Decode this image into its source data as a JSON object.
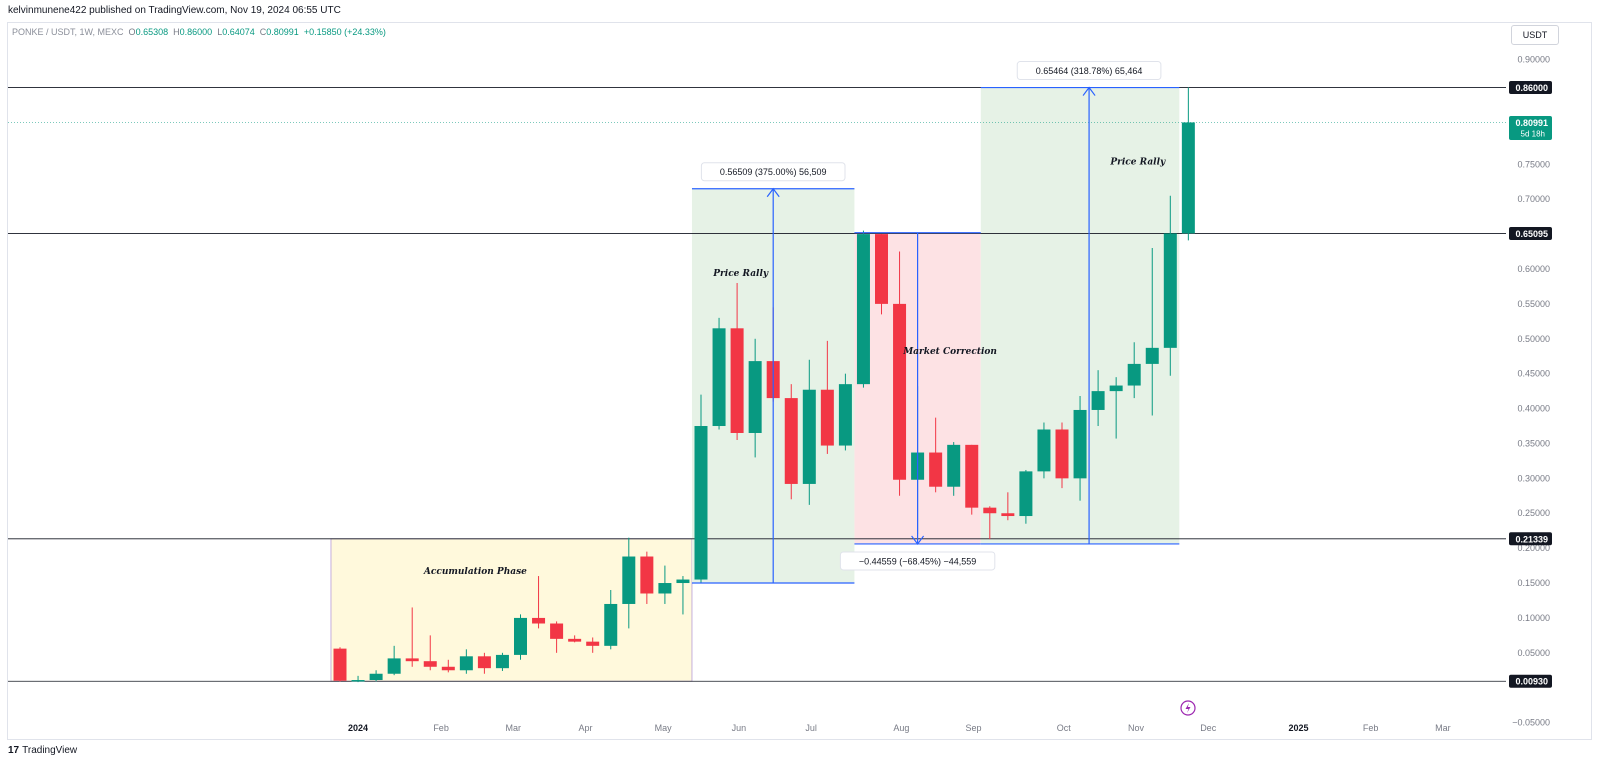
{
  "header": {
    "published": "kelvinmunene422 published on TradingView.com, Nov 19, 2024 06:55 UTC"
  },
  "legend": {
    "symbol": "PONKE / USDT, 1W, MEXC",
    "o_label": "O",
    "o": "0.65308",
    "h_label": "H",
    "h": "0.86000",
    "l_label": "L",
    "l": "0.64074",
    "c_label": "C",
    "c": "0.80991",
    "change": "+0.15850 (+24.33%)"
  },
  "currency_button": "USDT",
  "footer": {
    "logo": "17",
    "brand": "TradingView"
  },
  "chart_data": {
    "type": "candlestick",
    "interval": "1W",
    "ylim": [
      -0.0735,
      0.9525
    ],
    "y_ticks": [
      {
        "value": 0.9,
        "label": "0.90000"
      },
      {
        "value": 0.75,
        "label": "0.75000"
      },
      {
        "value": 0.7,
        "label": "0.70000"
      },
      {
        "value": 0.6,
        "label": "0.60000"
      },
      {
        "value": 0.55,
        "label": "0.55000"
      },
      {
        "value": 0.5,
        "label": "0.50000"
      },
      {
        "value": 0.45,
        "label": "0.45000"
      },
      {
        "value": 0.4,
        "label": "0.40000"
      },
      {
        "value": 0.35,
        "label": "0.35000"
      },
      {
        "value": 0.3,
        "label": "0.30000"
      },
      {
        "value": 0.25,
        "label": "0.25000"
      },
      {
        "value": 0.2,
        "label": "0.20000"
      },
      {
        "value": 0.15,
        "label": "0.15000"
      },
      {
        "value": 0.1,
        "label": "0.10000"
      },
      {
        "value": 0.05,
        "label": "0.05000"
      },
      {
        "value": -0.05,
        "label": "−0.05000"
      }
    ],
    "x_ticks": [
      {
        "label": "2024",
        "i": 1,
        "bold": true
      },
      {
        "label": "Feb",
        "i": 5.6
      },
      {
        "label": "Mar",
        "i": 9.6
      },
      {
        "label": "Apr",
        "i": 13.6
      },
      {
        "label": "May",
        "i": 17.9
      },
      {
        "label": "Jun",
        "i": 22.1
      },
      {
        "label": "Jul",
        "i": 26.1
      },
      {
        "label": "Aug",
        "i": 31.1
      },
      {
        "label": "Sep",
        "i": 35.1
      },
      {
        "label": "Oct",
        "i": 40.1
      },
      {
        "label": "Nov",
        "i": 44.1
      },
      {
        "label": "Dec",
        "i": 48.1
      },
      {
        "label": "2025",
        "i": 53.1,
        "bold": true
      },
      {
        "label": "Feb",
        "i": 57.1
      },
      {
        "label": "Mar",
        "i": 61.1
      }
    ],
    "candles": [
      [
        0.056,
        0.058,
        0.009,
        0.01
      ],
      [
        0.009,
        0.017,
        0.008,
        0.011
      ],
      [
        0.011,
        0.025,
        0.009,
        0.02
      ],
      [
        0.02,
        0.06,
        0.018,
        0.042
      ],
      [
        0.042,
        0.115,
        0.03,
        0.038
      ],
      [
        0.038,
        0.075,
        0.025,
        0.03
      ],
      [
        0.03,
        0.04,
        0.022,
        0.025
      ],
      [
        0.025,
        0.055,
        0.02,
        0.045
      ],
      [
        0.045,
        0.05,
        0.02,
        0.028
      ],
      [
        0.028,
        0.05,
        0.024,
        0.047
      ],
      [
        0.047,
        0.105,
        0.04,
        0.1
      ],
      [
        0.1,
        0.16,
        0.085,
        0.092
      ],
      [
        0.092,
        0.095,
        0.05,
        0.07
      ],
      [
        0.07,
        0.075,
        0.065,
        0.066
      ],
      [
        0.066,
        0.072,
        0.05,
        0.06
      ],
      [
        0.06,
        0.14,
        0.055,
        0.12
      ],
      [
        0.12,
        0.215,
        0.085,
        0.188
      ],
      [
        0.188,
        0.195,
        0.12,
        0.135
      ],
      [
        0.135,
        0.175,
        0.12,
        0.15
      ],
      [
        0.15,
        0.16,
        0.105,
        0.155
      ],
      [
        0.155,
        0.42,
        0.15,
        0.375
      ],
      [
        0.375,
        0.53,
        0.37,
        0.515
      ],
      [
        0.515,
        0.58,
        0.355,
        0.365
      ],
      [
        0.365,
        0.5,
        0.33,
        0.468
      ],
      [
        0.468,
        0.545,
        0.41,
        0.415
      ],
      [
        0.415,
        0.435,
        0.27,
        0.292
      ],
      [
        0.292,
        0.47,
        0.262,
        0.427
      ],
      [
        0.427,
        0.497,
        0.335,
        0.347
      ],
      [
        0.347,
        0.45,
        0.34,
        0.435
      ],
      [
        0.435,
        0.655,
        0.43,
        0.65
      ],
      [
        0.65,
        0.65,
        0.535,
        0.55
      ],
      [
        0.55,
        0.625,
        0.275,
        0.298
      ],
      [
        0.298,
        0.432,
        0.22,
        0.337
      ],
      [
        0.337,
        0.387,
        0.28,
        0.288
      ],
      [
        0.288,
        0.352,
        0.275,
        0.348
      ],
      [
        0.348,
        0.348,
        0.248,
        0.258
      ],
      [
        0.258,
        0.26,
        0.213,
        0.25
      ],
      [
        0.25,
        0.28,
        0.24,
        0.246
      ],
      [
        0.246,
        0.312,
        0.235,
        0.31
      ],
      [
        0.31,
        0.38,
        0.3,
        0.37
      ],
      [
        0.37,
        0.38,
        0.286,
        0.3
      ],
      [
        0.3,
        0.418,
        0.268,
        0.398
      ],
      [
        0.398,
        0.455,
        0.375,
        0.425
      ],
      [
        0.425,
        0.445,
        0.357,
        0.433
      ],
      [
        0.433,
        0.495,
        0.415,
        0.464
      ],
      [
        0.464,
        0.63,
        0.39,
        0.487
      ],
      [
        0.487,
        0.705,
        0.447,
        0.651
      ],
      [
        0.651,
        0.86,
        0.641,
        0.81
      ]
    ],
    "horizontal_lines": [
      {
        "price": 0.86,
        "label": "0.86000"
      },
      {
        "price": 0.65095,
        "label": "0.65095"
      },
      {
        "price": 0.21339,
        "label": "0.21339"
      },
      {
        "price": 0.0093,
        "label": "0.00930"
      }
    ],
    "last_price": {
      "price": 0.80991,
      "label": "0.80991",
      "countdown": "5d 18h"
    },
    "zones": [
      {
        "name": "Accumulation Phase",
        "from": -0.5,
        "to": 19.5,
        "low": 0.0093,
        "high": 0.21339,
        "color": "#fff9dc",
        "label_price": 0.163
      },
      {
        "name": "Price Rally",
        "from": 19.5,
        "to": 28.5,
        "low": 0.15,
        "high": 0.715,
        "color": "#e6f2e6",
        "label_price": 0.59
      },
      {
        "name": "Market Correction",
        "from": 28.5,
        "to": 35.5,
        "low": 0.206,
        "high": 0.652,
        "color": "#fde2e4",
        "label_price": 0.478
      },
      {
        "name": "Price Rally",
        "from": 35.5,
        "to": 46.5,
        "low": 0.206,
        "high": 0.86,
        "color": "#e6f2e6",
        "label_price": 0.75
      }
    ],
    "measures": [
      {
        "label": "0.56509 (375.00%) 56,509",
        "at": 24,
        "from": 0.15,
        "to": 0.715,
        "label_side": "top",
        "range": [
          19.5,
          28.5
        ]
      },
      {
        "label": "−0.44559 (−68.45%) −44,559",
        "at": 32,
        "from": 0.652,
        "to": 0.206,
        "label_side": "bottom",
        "range": [
          28.5,
          35.5
        ]
      },
      {
        "label": "0.65464 (318.78%) 65,464",
        "at": 41.5,
        "from": 0.206,
        "to": 0.86,
        "label_side": "top",
        "range": [
          35.5,
          46.5
        ]
      }
    ],
    "colors": {
      "up": "#089981",
      "down": "#f23645",
      "measure": "#2962ff",
      "grid_line": "#131722"
    },
    "events_icon": "lightning-icon"
  }
}
